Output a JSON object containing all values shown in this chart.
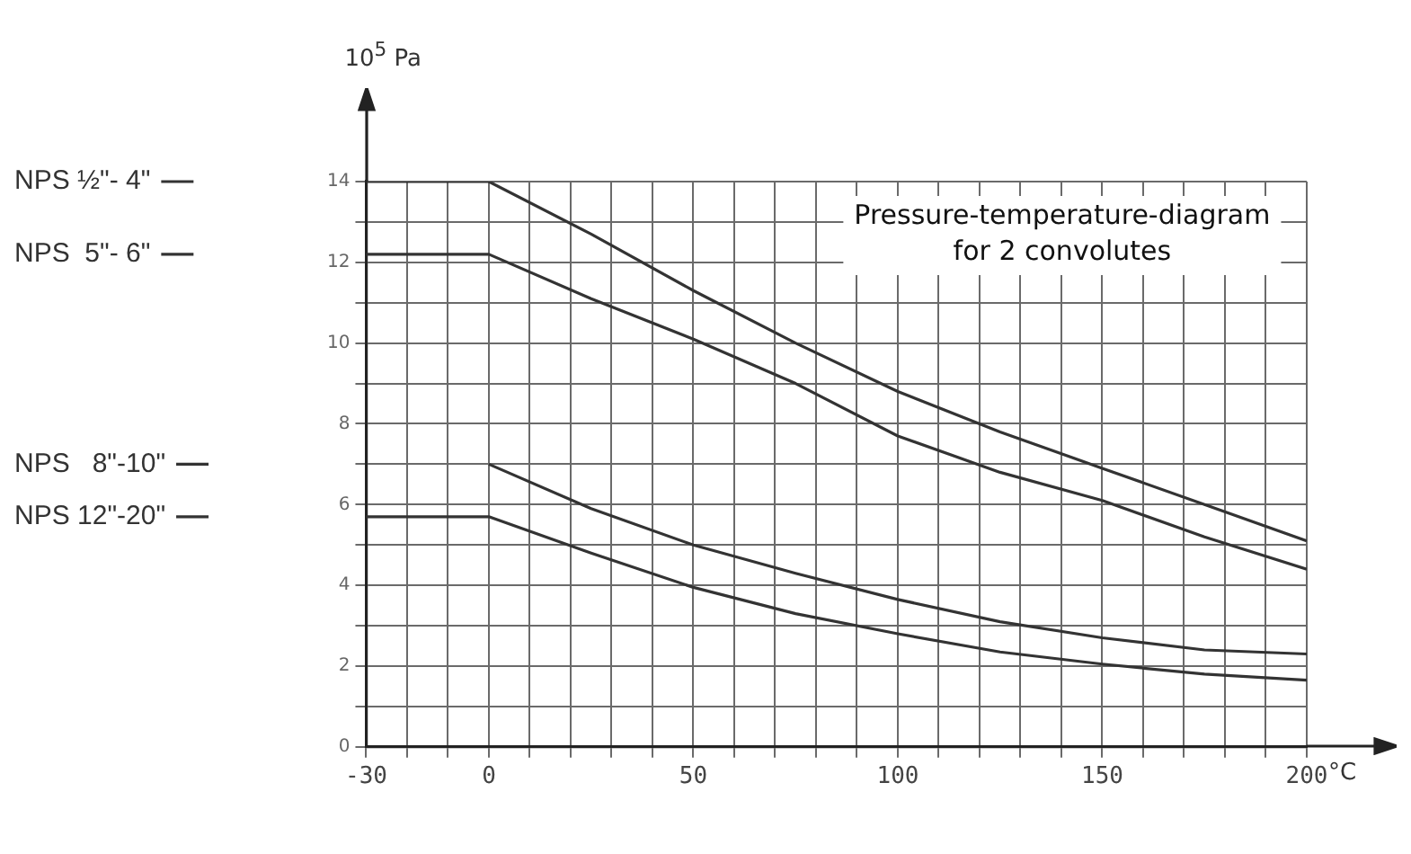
{
  "chart_data": {
    "type": "line",
    "x": [
      -30,
      0,
      25,
      50,
      75,
      100,
      125,
      150,
      175,
      200
    ],
    "series": [
      {
        "name": "NPS ½\"- 4\"",
        "color": "#333333",
        "values": [
          14,
          14,
          12.7,
          11.3,
          10.0,
          8.8,
          7.8,
          6.9,
          6.0,
          5.1
        ]
      },
      {
        "name": "NPS  5\"- 6\"",
        "color": "#333333",
        "values": [
          12.2,
          12.2,
          11.1,
          10.1,
          9.0,
          7.7,
          6.8,
          6.1,
          5.2,
          4.4
        ]
      },
      {
        "name": "NPS   8\"-10\"",
        "color": "#333333",
        "values": [
          null,
          7.0,
          5.9,
          5.0,
          4.3,
          3.65,
          3.1,
          2.7,
          2.4,
          2.3
        ]
      },
      {
        "name": "NPS 12\"-20\"",
        "color": "#333333",
        "values": [
          5.7,
          5.7,
          4.8,
          3.95,
          3.3,
          2.8,
          2.35,
          2.05,
          1.8,
          1.65
        ]
      }
    ],
    "xlabel": "°C",
    "ylabel": "10$^{5}$ Pa",
    "xlim": [
      -30,
      200
    ],
    "xticks": [
      -30,
      {
        "value": -20,
        "label": null
      },
      {
        "value": -10,
        "label": null
      },
      0,
      {
        "value": 10,
        "label": null
      },
      {
        "value": 20,
        "label": null
      },
      {
        "value": 30,
        "label": null
      },
      {
        "value": 40,
        "label": null
      },
      50,
      {
        "value": 60,
        "label": null
      },
      {
        "value": 70,
        "label": null
      },
      {
        "value": 80,
        "label": null
      },
      {
        "value": 90,
        "label": null
      },
      100,
      {
        "value": 110,
        "label": null
      },
      {
        "value": 120,
        "label": null
      },
      {
        "value": 130,
        "label": null
      },
      {
        "value": 140,
        "label": null
      },
      150,
      {
        "value": 160,
        "label": null
      },
      {
        "value": 170,
        "label": null
      },
      {
        "value": 180,
        "label": null
      },
      {
        "value": 190,
        "label": null
      },
      200
    ],
    "ylim": [
      0,
      14
    ],
    "yticks": [
      0,
      {
        "value": 1,
        "label": null
      },
      2,
      {
        "value": 3,
        "label": null
      },
      4,
      {
        "value": 5,
        "label": null
      },
      6,
      {
        "value": 7,
        "label": null
      },
      8,
      {
        "value": 9,
        "label": null
      },
      10,
      {
        "value": 11,
        "label": null
      },
      12,
      {
        "value": 13,
        "label": null
      },
      14
    ],
    "annotations": [
      "Pressure-temperature-diagram\nfor 2 convolutes"
    ],
    "grid": true,
    "legend": "left",
    "marker": "none",
    "line_style": "solid"
  }
}
